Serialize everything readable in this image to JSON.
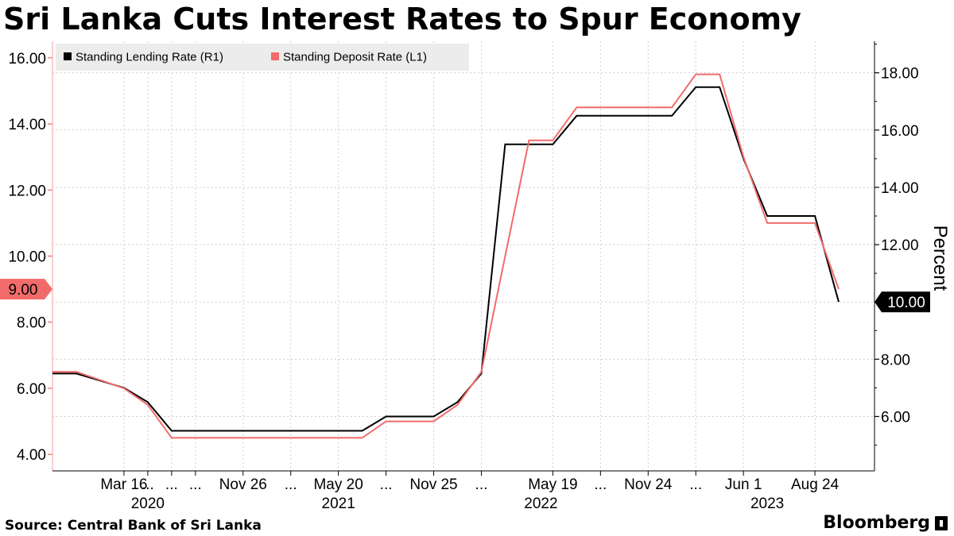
{
  "header": {
    "title": "Sri Lanka Cuts Interest Rates to Spur Economy"
  },
  "footer": {
    "source": "Source: Central Bank of Sri Lanka",
    "brand": "Bloomberg",
    "brand_mark": "▮"
  },
  "colors": {
    "lending": "#000000",
    "deposit": "#f26b6b",
    "grid": "#cfcfcf",
    "legend_bg": "#ececec"
  },
  "chart_data": {
    "type": "line",
    "title": "Sri Lanka Cuts Interest Rates to Spur Economy",
    "ylabel_right": "Percent",
    "x_tick_labels": [
      "Mar 16",
      "...",
      "...",
      "...",
      "Nov 26",
      "...",
      "May 20",
      "...",
      "Nov 25",
      "...",
      "May 19",
      "...",
      "Nov 24",
      "...",
      "Jun 1",
      "Aug 24"
    ],
    "x_tick_positions": [
      3,
      4,
      5,
      6,
      8,
      10,
      12,
      14,
      16,
      18,
      21,
      23,
      25,
      27,
      29,
      32
    ],
    "year_labels": [
      {
        "label": "2020",
        "pos": 4.0
      },
      {
        "label": "2021",
        "pos": 12.0
      },
      {
        "label": "2022",
        "pos": 20.5
      },
      {
        "label": "2023",
        "pos": 30.0
      }
    ],
    "x_range": [
      0,
      34.5
    ],
    "left_axis": {
      "ylim": [
        3.5,
        16.5
      ],
      "ticks": [
        "4.00",
        "6.00",
        "8.00",
        "10.00",
        "12.00",
        "14.00",
        "16.00"
      ],
      "current_label": "9.00"
    },
    "right_axis": {
      "ylim": [
        4.1,
        19.1
      ],
      "ticks": [
        "6.00",
        "8.00",
        "10.00",
        "12.00",
        "14.00",
        "16.00",
        "18.00"
      ],
      "current_label": "10.00"
    },
    "series": [
      {
        "name": "Standing Lending Rate (R1)",
        "axis": "right",
        "x": [
          0,
          1,
          3,
          4,
          5,
          13,
          14,
          16,
          17,
          18,
          19,
          21,
          22,
          26,
          27,
          28,
          29,
          30,
          32,
          33
        ],
        "values": [
          7.5,
          7.5,
          7.0,
          6.5,
          5.5,
          5.5,
          6.0,
          6.0,
          6.5,
          7.5,
          15.5,
          15.5,
          16.5,
          16.5,
          17.5,
          17.5,
          15.0,
          13.0,
          13.0,
          10.0
        ]
      },
      {
        "name": "Standing Deposit Rate (L1)",
        "axis": "left",
        "x": [
          0,
          1,
          3,
          4,
          5,
          13,
          14,
          16,
          17,
          18,
          20,
          21,
          22,
          26,
          27,
          28,
          29,
          30,
          32,
          33
        ],
        "values": [
          6.5,
          6.5,
          6.0,
          5.5,
          4.5,
          4.5,
          5.0,
          5.0,
          5.5,
          6.5,
          13.5,
          13.5,
          14.5,
          14.5,
          15.5,
          15.5,
          13.0,
          11.0,
          11.0,
          9.0
        ]
      }
    ],
    "legend": {
      "placement": "top-left",
      "items": [
        {
          "label": "Standing Lending Rate (R1)",
          "color": "#000000"
        },
        {
          "label": "Standing Deposit Rate (L1)",
          "color": "#f26b6b"
        }
      ]
    },
    "grid": true
  }
}
